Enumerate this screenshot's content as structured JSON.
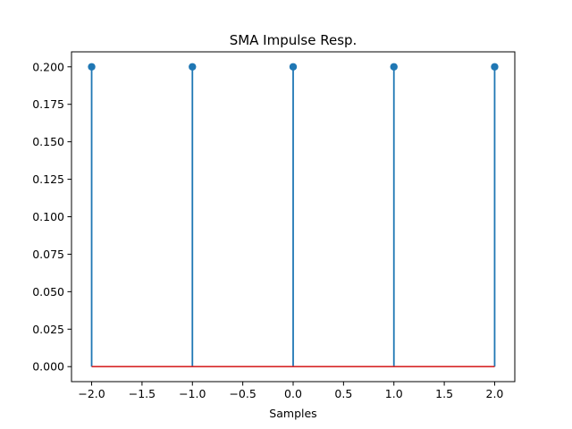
{
  "chart_data": {
    "type": "stem",
    "title": "SMA Impulse Resp.",
    "xlabel": "Samples",
    "ylabel": "",
    "x": [
      -2.0,
      -1.0,
      0.0,
      1.0,
      2.0
    ],
    "y": [
      0.2,
      0.2,
      0.2,
      0.2,
      0.2
    ],
    "baseline": 0.0,
    "xlim": [
      -2.2,
      2.2
    ],
    "ylim": [
      -0.01,
      0.21
    ],
    "xticks": [
      -2.0,
      -1.5,
      -1.0,
      -0.5,
      0.0,
      0.5,
      1.0,
      1.5,
      2.0
    ],
    "xtick_labels": [
      "−2.0",
      "−1.5",
      "−1.0",
      "−0.5",
      "0.0",
      "0.5",
      "1.0",
      "1.5",
      "2.0"
    ],
    "yticks": [
      0.0,
      0.025,
      0.05,
      0.075,
      0.1,
      0.125,
      0.15,
      0.175,
      0.2
    ],
    "ytick_labels": [
      "0.000",
      "0.025",
      "0.050",
      "0.075",
      "0.100",
      "0.125",
      "0.150",
      "0.175",
      "0.200"
    ],
    "grid": false,
    "colors": {
      "stem": "#1f77b4",
      "marker": "#1f77b4",
      "baseline": "#d62728",
      "axes": "#000000"
    }
  }
}
